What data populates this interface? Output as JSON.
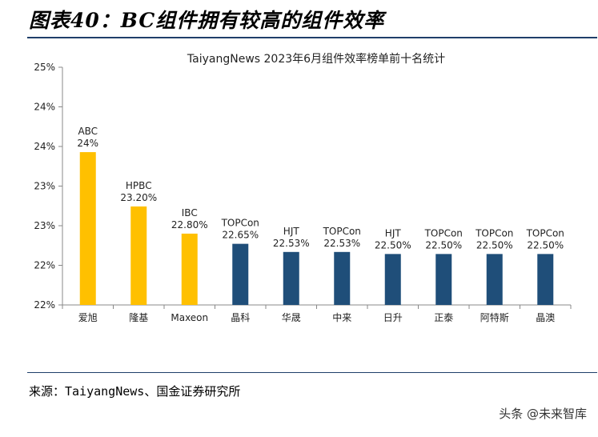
{
  "page": {
    "figure_title": "图表40：BC组件拥有较高的组件效率",
    "source": "来源：TaiyangNews、国金证券研究所",
    "watermark": "头条 @未来智库"
  },
  "chart_data": {
    "type": "bar",
    "title": "TaiyangNews 2023年6月组件效率榜单前十名统计",
    "xlabel": "",
    "ylabel": "",
    "categories": [
      "爱旭",
      "隆基",
      "Maxeon",
      "晶科",
      "华晟",
      "中来",
      "日升",
      "正泰",
      "阿特斯",
      "晶澳"
    ],
    "values": [
      24.0,
      23.2,
      22.8,
      22.65,
      22.53,
      22.53,
      22.5,
      22.5,
      22.5,
      22.5
    ],
    "technologies": [
      "ABC",
      "HPBC",
      "IBC",
      "TOPCon",
      "HJT",
      "TOPCon",
      "HJT",
      "TOPCon",
      "TOPCon",
      "TOPCon"
    ],
    "value_labels": [
      "24%",
      "23.20%",
      "22.80%",
      "22.65%",
      "22.53%",
      "22.53%",
      "22.50%",
      "22.50%",
      "22.50%",
      "22.50%"
    ],
    "yticks": [
      "22%",
      "22%",
      "23%",
      "23%",
      "24%",
      "24%",
      "25%"
    ],
    "ylim": [
      21.75,
      25.25
    ],
    "grid": false,
    "colors": {
      "BC": "#FFC000",
      "other": "#1F4E79"
    },
    "bar_color_groups": [
      "BC",
      "BC",
      "BC",
      "other",
      "other",
      "other",
      "other",
      "other",
      "other",
      "other"
    ]
  }
}
